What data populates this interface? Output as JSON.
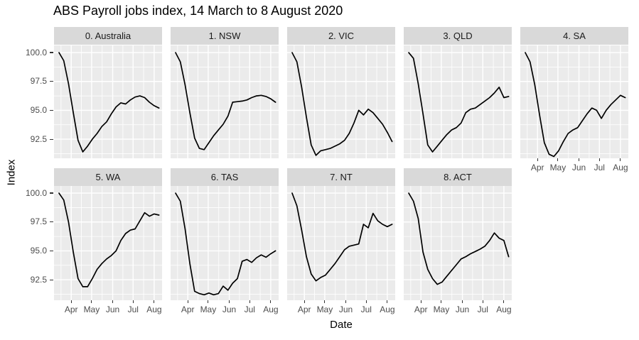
{
  "title": "ABS Payroll jobs index, 14 March to 8 August 2020",
  "axes": {
    "x": {
      "label": "Date",
      "ticks": [
        "Apr",
        "May",
        "Jun",
        "Jul",
        "Aug"
      ]
    },
    "y": {
      "label": "Index",
      "ticks": [
        "100.0",
        "97.5",
        "95.0",
        "92.5"
      ]
    }
  },
  "colors": {
    "panel_background": "#EBEBEB",
    "strip_background": "#D9D9D9",
    "gridline": "#FFFFFF",
    "series_line": "#000000",
    "axis_text": "#4D4D4D",
    "tick_mark": "#333333",
    "title_text": "#000000",
    "strip_text": "#1A1A1A"
  },
  "chart_data": {
    "type": "line",
    "title": "ABS Payroll jobs index, 14 March to 8 August 2020",
    "xlabel": "Date",
    "ylabel": "Index",
    "legend": "none",
    "grid": "white major and minor gridlines on grey panels",
    "y_ticks": [
      100.0,
      97.5,
      95.0,
      92.5
    ],
    "y_minor_ticks": [
      98.75,
      96.25,
      93.75,
      91.25
    ],
    "x_tick_labels": [
      "Apr",
      "May",
      "Jun",
      "Jul",
      "Aug"
    ],
    "ylim": [
      90.6,
      100.6
    ],
    "x": [
      "2020-03-14",
      "2020-03-21",
      "2020-03-28",
      "2020-04-04",
      "2020-04-11",
      "2020-04-18",
      "2020-04-25",
      "2020-05-02",
      "2020-05-09",
      "2020-05-16",
      "2020-05-23",
      "2020-05-30",
      "2020-06-06",
      "2020-06-13",
      "2020-06-20",
      "2020-06-27",
      "2020-07-04",
      "2020-07-11",
      "2020-07-18",
      "2020-07-25",
      "2020-08-01",
      "2020-08-08"
    ],
    "facets": [
      {
        "label": "0. Australia",
        "values": [
          100,
          99.3,
          97.3,
          94.8,
          92.4,
          91.4,
          91.9,
          92.5,
          93.0,
          93.6,
          94.0,
          94.7,
          95.3,
          95.65,
          95.55,
          95.9,
          96.15,
          96.25,
          96.1,
          95.7,
          95.4,
          95.2
        ]
      },
      {
        "label": "1. NSW",
        "values": [
          100,
          99.2,
          97.2,
          94.8,
          92.6,
          91.7,
          91.6,
          92.2,
          92.8,
          93.3,
          93.8,
          94.5,
          95.7,
          95.75,
          95.8,
          95.9,
          96.1,
          96.25,
          96.3,
          96.2,
          96.0,
          95.7
        ]
      },
      {
        "label": "2. VIC",
        "values": [
          100,
          99.2,
          97.0,
          94.4,
          92.0,
          91.1,
          91.5,
          91.6,
          91.7,
          91.9,
          92.1,
          92.4,
          93.0,
          93.9,
          95.0,
          94.6,
          95.1,
          94.8,
          94.3,
          93.8,
          93.1,
          92.3
        ]
      },
      {
        "label": "3. QLD",
        "values": [
          100,
          99.5,
          97.3,
          94.7,
          92.0,
          91.4,
          91.9,
          92.4,
          92.9,
          93.3,
          93.5,
          93.9,
          94.8,
          95.1,
          95.2,
          95.5,
          95.8,
          96.1,
          96.5,
          97.0,
          96.1,
          96.2
        ]
      },
      {
        "label": "4. SA",
        "values": [
          100,
          99.2,
          97.2,
          94.6,
          92.2,
          91.2,
          91.0,
          91.5,
          92.3,
          93.0,
          93.3,
          93.5,
          94.1,
          94.7,
          95.2,
          95.0,
          94.3,
          95.0,
          95.5,
          95.9,
          96.3,
          96.1
        ]
      },
      {
        "label": "5. WA",
        "values": [
          100,
          99.4,
          97.5,
          94.9,
          92.6,
          91.9,
          91.9,
          92.6,
          93.4,
          93.9,
          94.3,
          94.6,
          95.0,
          95.9,
          96.5,
          96.8,
          96.9,
          97.6,
          98.3,
          98.0,
          98.2,
          98.1
        ]
      },
      {
        "label": "6. TAS",
        "values": [
          100,
          99.3,
          96.9,
          93.9,
          91.5,
          91.3,
          91.2,
          91.35,
          91.2,
          91.3,
          91.95,
          91.6,
          92.2,
          92.6,
          94.1,
          94.25,
          94.0,
          94.4,
          94.65,
          94.45,
          94.75,
          95.0
        ]
      },
      {
        "label": "7. NT",
        "values": [
          100,
          98.9,
          96.8,
          94.5,
          93.0,
          92.4,
          92.7,
          92.9,
          93.4,
          93.9,
          94.5,
          95.1,
          95.4,
          95.5,
          95.6,
          97.3,
          97.0,
          98.25,
          97.6,
          97.3,
          97.1,
          97.3
        ]
      },
      {
        "label": "8. ACT",
        "values": [
          100,
          99.3,
          97.8,
          94.9,
          93.4,
          92.6,
          92.1,
          92.3,
          92.8,
          93.3,
          93.8,
          94.3,
          94.5,
          94.75,
          94.95,
          95.15,
          95.4,
          95.9,
          96.55,
          96.1,
          95.9,
          94.5
        ]
      }
    ]
  }
}
